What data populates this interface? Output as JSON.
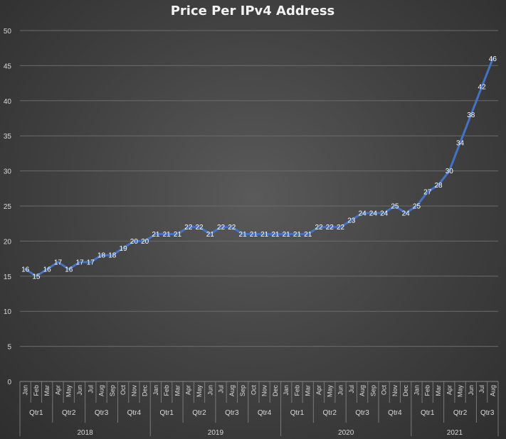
{
  "chart_data": {
    "type": "line",
    "title": "Price Per IPv4 Address",
    "xlabel": "",
    "ylabel": "",
    "ylim": [
      0,
      50
    ],
    "yticks": [
      0,
      5,
      10,
      15,
      20,
      25,
      30,
      35,
      40,
      45,
      50
    ],
    "grid": true,
    "legend": "none",
    "colors": {
      "series": "#4472c4",
      "background": "#404040"
    },
    "year_groups": [
      {
        "year": "2018",
        "quarters": [
          {
            "label": "Qtr1",
            "months": [
              "Jan",
              "Feb",
              "Mar"
            ]
          },
          {
            "label": "Qtr2",
            "months": [
              "Apr",
              "May",
              "Jun"
            ]
          },
          {
            "label": "Qtr3",
            "months": [
              "Jul",
              "Aug",
              "Sep"
            ]
          },
          {
            "label": "Qtr4",
            "months": [
              "Oct",
              "Nov",
              "Dec"
            ]
          }
        ]
      },
      {
        "year": "2019",
        "quarters": [
          {
            "label": "Qtr1",
            "months": [
              "Jan",
              "Feb",
              "Mar"
            ]
          },
          {
            "label": "Qtr2",
            "months": [
              "Apr",
              "May",
              "Jun"
            ]
          },
          {
            "label": "Qtr3",
            "months": [
              "Jul",
              "Aug",
              "Sep"
            ]
          },
          {
            "label": "Qtr4",
            "months": [
              "Oct",
              "Nov",
              "Dec"
            ]
          }
        ]
      },
      {
        "year": "2020",
        "quarters": [
          {
            "label": "Qtr1",
            "months": [
              "Jan",
              "Feb",
              "Mar"
            ]
          },
          {
            "label": "Qtr2",
            "months": [
              "Apr",
              "May",
              "Jun"
            ]
          },
          {
            "label": "Qtr3",
            "months": [
              "Jul",
              "Aug",
              "Sep"
            ]
          },
          {
            "label": "Qtr4",
            "months": [
              "Oct",
              "Nov",
              "Dec"
            ]
          }
        ]
      },
      {
        "year": "2021",
        "quarters": [
          {
            "label": "Qtr1",
            "months": [
              "Jan",
              "Feb",
              "Mar"
            ]
          },
          {
            "label": "Qtr2",
            "months": [
              "Apr",
              "May",
              "Jun"
            ]
          },
          {
            "label": "Qtr3",
            "months": [
              "Jul",
              "Aug"
            ]
          }
        ]
      }
    ],
    "series": [
      {
        "values": [
          16,
          15,
          16,
          17,
          16,
          17,
          17,
          18,
          18,
          19,
          20,
          20,
          21,
          21,
          21,
          22,
          22,
          21,
          22,
          22,
          21,
          21,
          21,
          21,
          21,
          21,
          21,
          22,
          22,
          22,
          23,
          24,
          24,
          24,
          25,
          24,
          25,
          27,
          28,
          30,
          34,
          38,
          42,
          46
        ]
      }
    ]
  }
}
